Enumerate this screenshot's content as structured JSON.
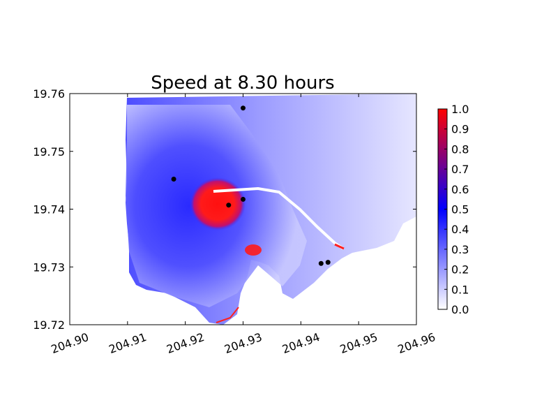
{
  "chart_data": {
    "type": "heatmap",
    "title": "Speed at 8.30 hours",
    "xlabel": "",
    "ylabel": "",
    "xlim": [
      204.9,
      204.96
    ],
    "ylim": [
      19.72,
      19.76
    ],
    "x_ticks": [
      "204.90",
      "204.91",
      "204.92",
      "204.93",
      "204.94",
      "204.95",
      "204.96"
    ],
    "y_ticks": [
      "19.72",
      "19.73",
      "19.74",
      "19.75",
      "19.76"
    ],
    "x_tick_values": [
      204.9,
      204.91,
      204.92,
      204.93,
      204.94,
      204.95,
      204.96
    ],
    "y_tick_values": [
      19.72,
      19.73,
      19.74,
      19.75,
      19.76
    ],
    "colorbar": {
      "min": 0.0,
      "max": 1.0,
      "ticks": [
        "0.0",
        "0.1",
        "0.2",
        "0.3",
        "0.4",
        "0.5",
        "0.6",
        "0.7",
        "0.8",
        "0.9",
        "1.0"
      ],
      "tick_values": [
        0.0,
        0.1,
        0.2,
        0.3,
        0.4,
        0.5,
        0.6,
        0.7,
        0.8,
        0.9,
        1.0
      ],
      "colors": [
        "#ffffff",
        "#0000ff",
        "#ff0000"
      ]
    },
    "grid": false,
    "gauge_points": [
      {
        "x": 204.93,
        "y": 19.7575
      },
      {
        "x": 204.918,
        "y": 19.7452
      },
      {
        "x": 204.93,
        "y": 19.7417
      },
      {
        "x": 204.9275,
        "y": 19.7407
      },
      {
        "x": 204.9435,
        "y": 19.7306
      },
      {
        "x": 204.9447,
        "y": 19.7308
      }
    ]
  }
}
